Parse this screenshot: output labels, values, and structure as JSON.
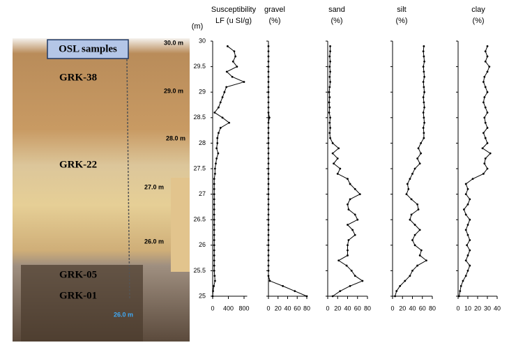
{
  "depth_axis": {
    "label": "(m)",
    "ylim": [
      25,
      30
    ],
    "yticks": [
      25,
      25.5,
      26,
      26.5,
      27,
      27.5,
      28,
      28.5,
      29,
      29.5,
      30
    ],
    "depths": [
      25.0,
      25.1,
      25.2,
      25.3,
      25.4,
      25.5,
      25.6,
      25.7,
      25.8,
      25.9,
      26.0,
      26.1,
      26.2,
      26.3,
      26.4,
      26.5,
      26.6,
      26.7,
      26.8,
      26.9,
      27.0,
      27.1,
      27.2,
      27.3,
      27.4,
      27.5,
      27.6,
      27.7,
      27.8,
      27.9,
      28.0,
      28.1,
      28.2,
      28.3,
      28.4,
      28.5,
      28.6,
      28.7,
      28.8,
      28.9,
      29.0,
      29.1,
      29.2,
      29.3,
      29.4,
      29.5,
      29.6,
      29.7,
      29.8,
      29.9
    ]
  },
  "photo": {
    "box": "OSL samples",
    "samples": [
      "GRK-38",
      "GRK-22",
      "GRK-05",
      "GRK-01"
    ],
    "depth_marks": [
      "30.0 m",
      "29.0 m",
      "28.0 m",
      "27.0 m",
      "26.0 m",
      "26.0 m"
    ]
  },
  "chart_data": [
    {
      "type": "line",
      "title": "Susceptibility",
      "unit": "LF (u SI/g)",
      "xlim": [
        0,
        880
      ],
      "xticks": [
        0,
        400,
        800
      ],
      "color": "#000000",
      "values": [
        0,
        10,
        30,
        60,
        50,
        40,
        40,
        40,
        40,
        40,
        40,
        40,
        40,
        40,
        40,
        40,
        40,
        40,
        40,
        40,
        40,
        40,
        40,
        40,
        60,
        60,
        80,
        100,
        140,
        100,
        120,
        120,
        150,
        200,
        420,
        250,
        50,
        150,
        200,
        250,
        300,
        350,
        800,
        500,
        360,
        620,
        520,
        580,
        550,
        380
      ]
    },
    {
      "type": "line",
      "title": "gravel",
      "unit": "(%)",
      "xlim": [
        0,
        80
      ],
      "xticks": [
        0,
        20,
        40,
        60,
        80
      ],
      "color": "#000000",
      "values": [
        80,
        55,
        30,
        3,
        0,
        0,
        0,
        0,
        0,
        0,
        0,
        0,
        0,
        0,
        0,
        0,
        0,
        0,
        0,
        0,
        0,
        0,
        0,
        0,
        0,
        0,
        0,
        0,
        0,
        0,
        0,
        0,
        0,
        0,
        0,
        2,
        0,
        0,
        0,
        0,
        0,
        0,
        0,
        0,
        0,
        0,
        0,
        0,
        0,
        0
      ]
    },
    {
      "type": "line",
      "title": "sand",
      "unit": "(%)",
      "xlim": [
        0,
        80
      ],
      "xticks": [
        0,
        20,
        40,
        60,
        80
      ],
      "color": "#000000",
      "values": [
        10,
        25,
        45,
        70,
        55,
        48,
        38,
        22,
        40,
        40,
        40,
        42,
        55,
        50,
        40,
        60,
        55,
        42,
        40,
        45,
        65,
        55,
        45,
        40,
        20,
        25,
        12,
        20,
        10,
        22,
        10,
        5,
        4,
        5,
        4,
        5,
        3,
        4,
        3,
        4,
        3,
        4,
        5,
        4,
        5,
        4,
        5,
        4,
        5,
        5
      ]
    },
    {
      "type": "line",
      "title": "silt",
      "unit": "(%)",
      "xlim": [
        0,
        80
      ],
      "xticks": [
        0,
        20,
        40,
        60,
        80
      ],
      "color": "#000000",
      "values": [
        5,
        8,
        15,
        25,
        35,
        40,
        50,
        68,
        55,
        58,
        45,
        40,
        45,
        55,
        45,
        35,
        38,
        52,
        50,
        38,
        28,
        32,
        30,
        35,
        40,
        45,
        55,
        50,
        57,
        52,
        57,
        63,
        63,
        62,
        64,
        63,
        62,
        64,
        63,
        62,
        64,
        63,
        62,
        64,
        63,
        62,
        64,
        63,
        62,
        63
      ]
    },
    {
      "type": "line",
      "title": "clay",
      "unit": "(%)",
      "xlim": [
        0,
        40
      ],
      "xticks": [
        0,
        10,
        20,
        30,
        40
      ],
      "color": "#000000",
      "values": [
        1,
        2,
        3,
        5,
        8,
        10,
        12,
        8,
        10,
        12,
        9,
        12,
        10,
        8,
        10,
        12,
        8,
        6,
        10,
        12,
        8,
        10,
        8,
        15,
        26,
        30,
        27,
        28,
        33,
        25,
        30,
        28,
        26,
        30,
        28,
        27,
        30,
        28,
        26,
        27,
        30,
        28,
        26,
        27,
        30,
        32,
        28,
        30,
        28,
        30
      ]
    }
  ]
}
